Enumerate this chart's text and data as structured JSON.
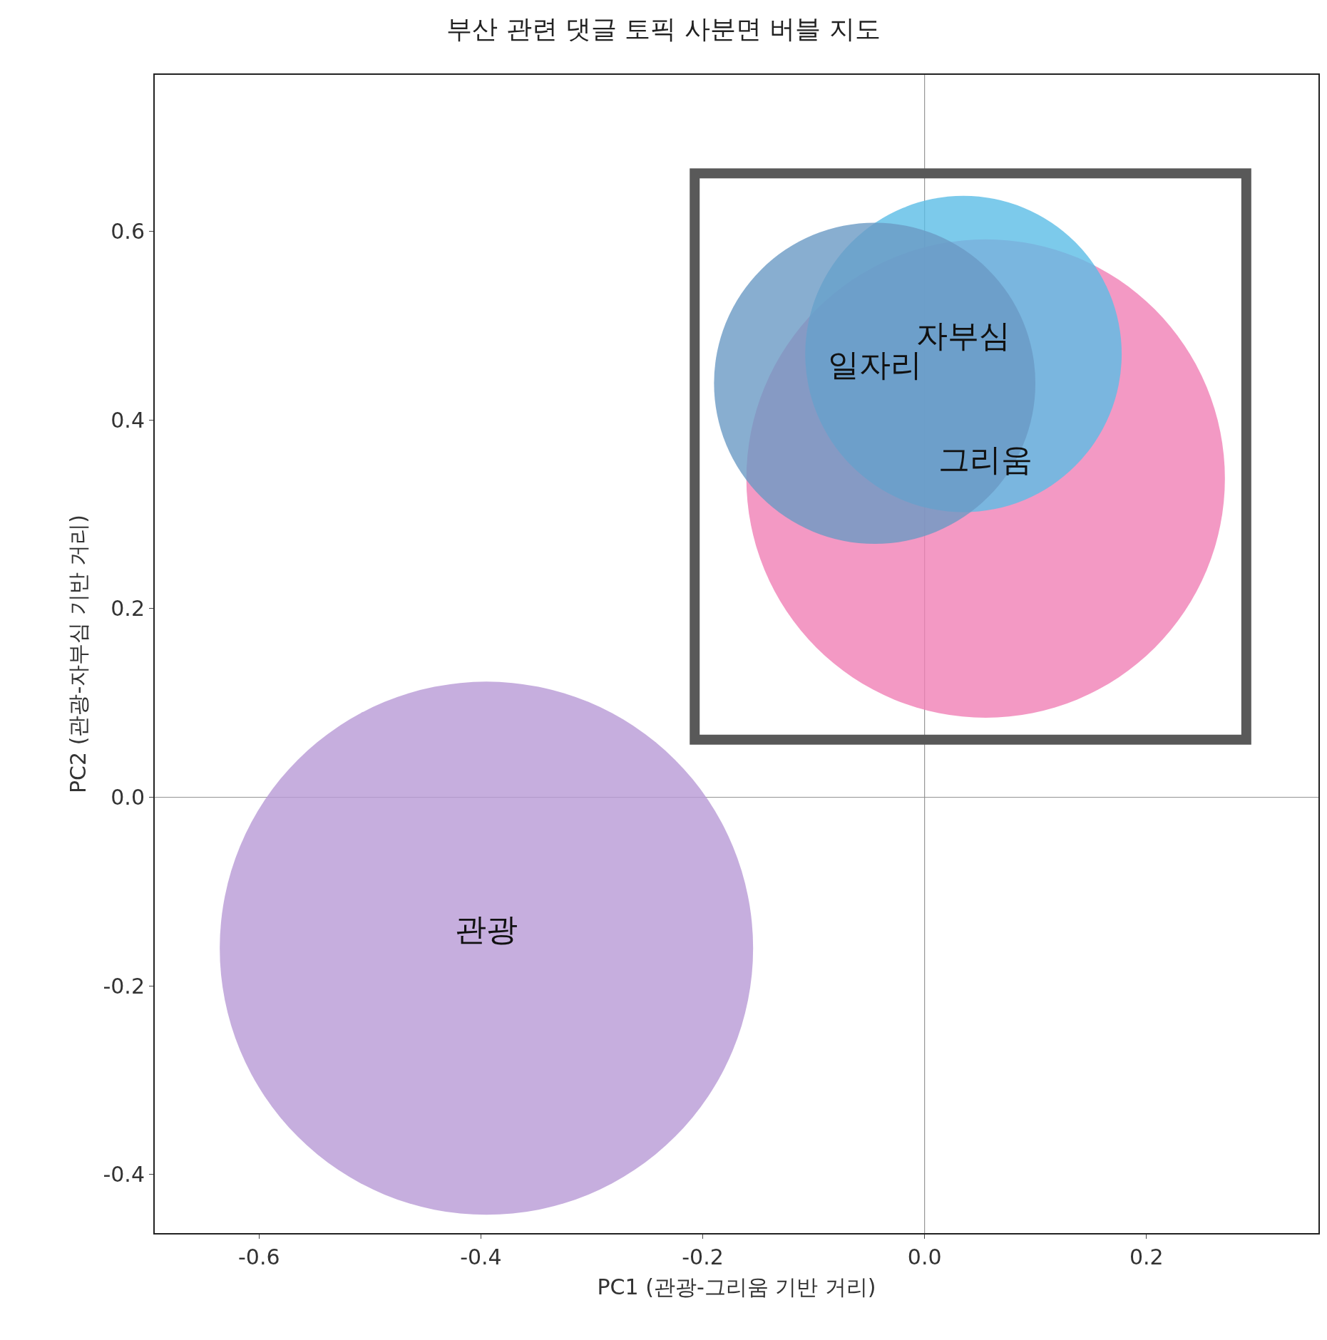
{
  "chart_data": {
    "type": "bubble",
    "title": "부산 관련 댓글 토픽 사분면 버블 지도",
    "xlabel": "PC1 (관광-그리움 기반 거리)",
    "ylabel": "PC2 (관광-자부심 기반 거리)",
    "series": [
      {
        "name": "관광",
        "color": "#b89ad6",
        "x": [
          -0.395
        ],
        "values": [
          -0.16
        ],
        "sizes": [
          1
        ]
      },
      {
        "name": "그리움",
        "color": "#f07fb5",
        "x": [
          0.055
        ],
        "values": [
          0.338
        ],
        "sizes": [
          0.805
        ]
      },
      {
        "name": "자부심",
        "color": "#5bbde6",
        "x": [
          0.035
        ],
        "values": [
          0.47
        ],
        "sizes": [
          0.352
        ]
      },
      {
        "name": "일자리",
        "color": "#6a9ac4",
        "x": [
          -0.045
        ],
        "values": [
          0.439
        ],
        "sizes": [
          0.363
        ]
      }
    ],
    "xlim": [
      -0.694,
      0.355
    ],
    "xticks": [
      {
        "value": -0.6,
        "label": "-0.6"
      },
      {
        "value": -0.4,
        "label": "-0.4"
      },
      {
        "value": -0.2,
        "label": "-0.2"
      },
      {
        "value": 0,
        "label": "0.0"
      },
      {
        "value": 0.2,
        "label": "0.2"
      }
    ],
    "ylim": [
      -0.462,
      0.766
    ],
    "yticks": [
      {
        "value": -0.4,
        "label": "-0.4"
      },
      {
        "value": -0.2,
        "label": "-0.2"
      },
      {
        "value": 0,
        "label": "0.0"
      },
      {
        "value": 0.2,
        "label": "0.2"
      },
      {
        "value": 0.4,
        "label": "0.4"
      },
      {
        "value": 0.6,
        "label": "0.6"
      }
    ],
    "ref_lines": [
      {
        "axis": "x",
        "value": 0,
        "color": "#808080"
      },
      {
        "axis": "y",
        "value": 0,
        "color": "#8c8c8c"
      }
    ],
    "grid": false,
    "legend": false
  }
}
